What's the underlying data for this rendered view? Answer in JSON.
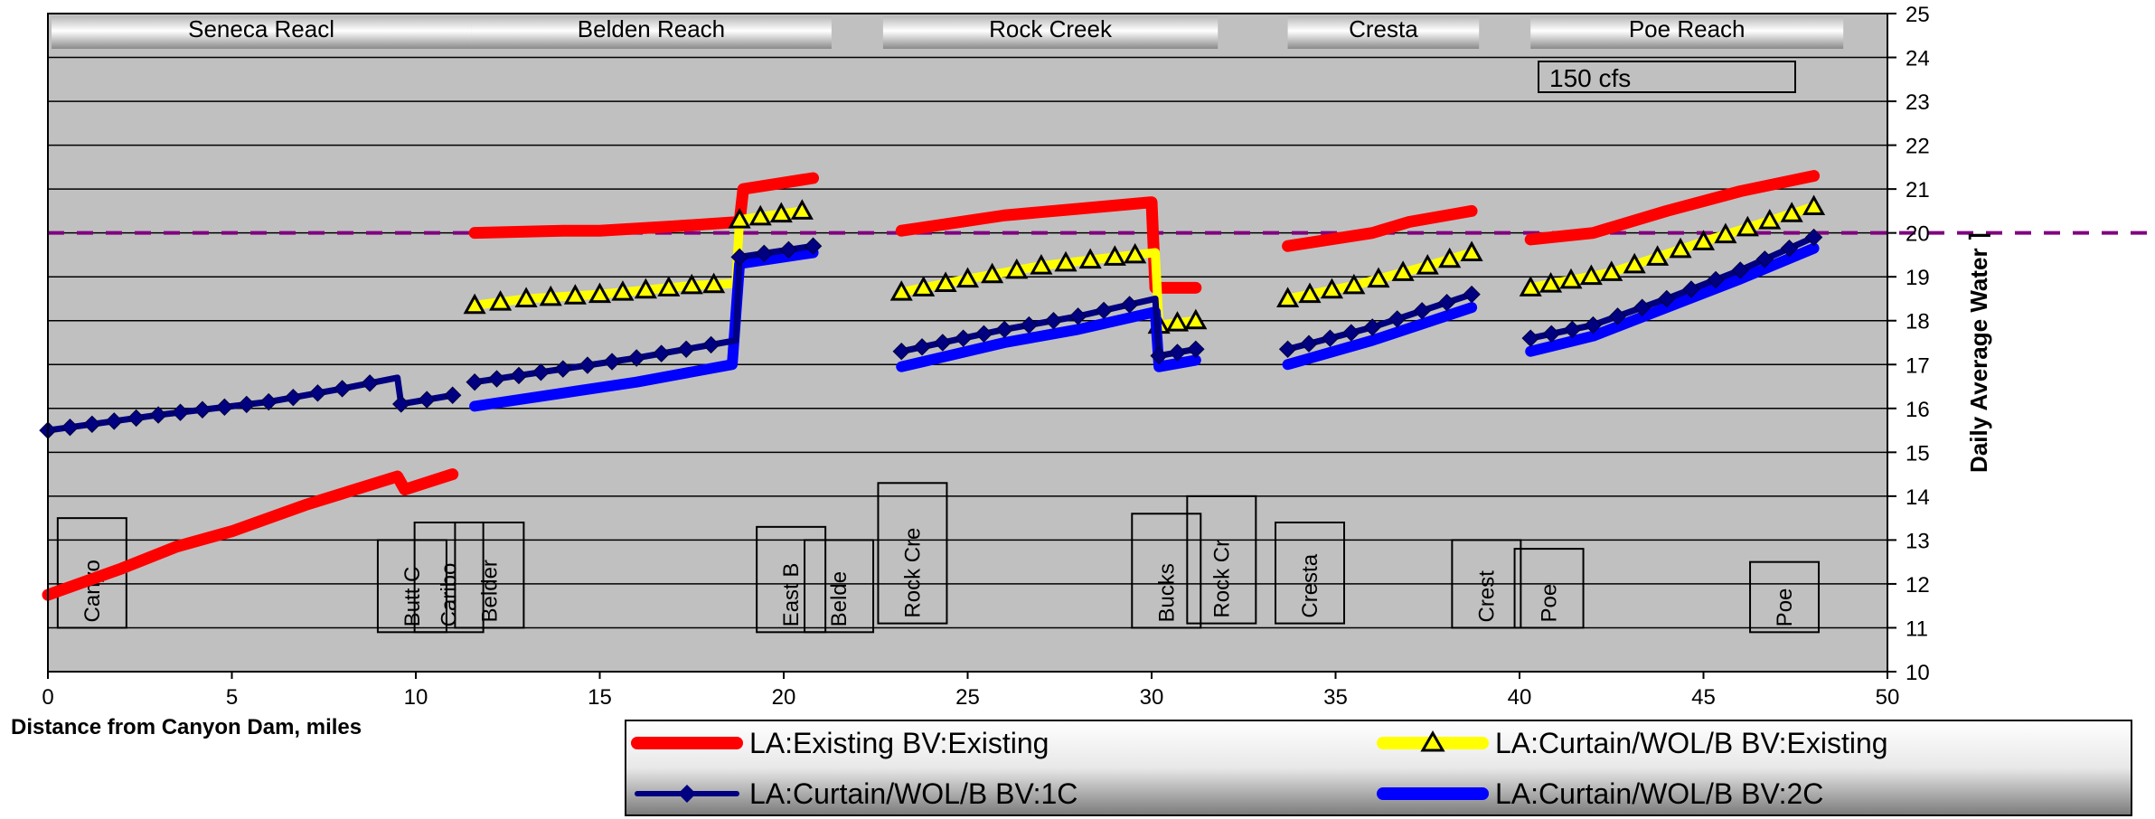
{
  "chart_data": {
    "type": "line",
    "title": "",
    "xlabel": "Distance from Canyon Dam, miles",
    "ylabel": "Daily Average Water ⌉",
    "xlim": [
      0,
      50
    ],
    "ylim": [
      10,
      25
    ],
    "x_ticks": [
      0,
      5,
      10,
      15,
      20,
      25,
      30,
      35,
      40,
      45,
      50
    ],
    "y_ticks": [
      10,
      11,
      12,
      13,
      14,
      15,
      16,
      17,
      18,
      19,
      20,
      21,
      22,
      23,
      24,
      25
    ],
    "grid": true,
    "flow_label": "150 cfs",
    "reference_line": {
      "y": 20,
      "color": "#800080",
      "style": "dashed"
    },
    "reach_labels": [
      {
        "text": "Seneca Reacl",
        "x0": 0.1,
        "x1": 11.5
      },
      {
        "text": "Belden Reach",
        "x0": 11.5,
        "x1": 21.3
      },
      {
        "text": "Rock Creek",
        "x0": 22.7,
        "x1": 31.8
      },
      {
        "text": "Cresta",
        "x0": 33.7,
        "x1": 38.9
      },
      {
        "text": "Poe Reach",
        "x0": 40.3,
        "x1": 48.8
      }
    ],
    "location_labels": [
      {
        "text": "Canyo",
        "x": 1.2,
        "y0": 11.0,
        "y1": 13.5
      },
      {
        "text": "Butt C",
        "x": 9.9,
        "y0": 10.9,
        "y1": 13.0
      },
      {
        "text": "Caribo",
        "x": 10.9,
        "y0": 10.9,
        "y1": 13.4
      },
      {
        "text": "Belder",
        "x": 12.0,
        "y0": 11.0,
        "y1": 13.4
      },
      {
        "text": "East B",
        "x": 20.2,
        "y0": 10.9,
        "y1": 13.3
      },
      {
        "text": "Belde",
        "x": 21.5,
        "y0": 10.9,
        "y1": 13.0
      },
      {
        "text": "Rock Cre",
        "x": 23.5,
        "y0": 11.1,
        "y1": 14.3
      },
      {
        "text": "Bucks",
        "x": 30.4,
        "y0": 11.0,
        "y1": 13.6
      },
      {
        "text": "Rock Cr",
        "x": 31.9,
        "y0": 11.1,
        "y1": 14.0
      },
      {
        "text": "Cresta",
        "x": 34.3,
        "y0": 11.1,
        "y1": 13.4
      },
      {
        "text": "Crest",
        "x": 39.1,
        "y0": 11.0,
        "y1": 13.0
      },
      {
        "text": "Poe",
        "x": 40.8,
        "y0": 11.0,
        "y1": 12.8
      },
      {
        "text": "Poe",
        "x": 47.2,
        "y0": 10.9,
        "y1": 12.5
      }
    ],
    "series": [
      {
        "name": "LA:Existing BV:Existing",
        "color": "#ff0000",
        "marker": "none",
        "segments": [
          [
            [
              0,
              11.75
            ],
            [
              2,
              12.35
            ],
            [
              3.5,
              12.85
            ],
            [
              5,
              13.2
            ],
            [
              7,
              13.8
            ],
            [
              9.5,
              14.45
            ],
            [
              9.7,
              14.15
            ],
            [
              11,
              14.5
            ]
          ],
          [
            [
              11.6,
              20.0
            ],
            [
              14,
              20.05
            ],
            [
              15,
              20.05
            ],
            [
              17,
              20.15
            ],
            [
              18.8,
              20.25
            ],
            [
              18.9,
              21.0
            ],
            [
              20.8,
              21.25
            ]
          ],
          [
            [
              23.2,
              20.05
            ],
            [
              26,
              20.4
            ],
            [
              28,
              20.55
            ],
            [
              30,
              20.7
            ],
            [
              30.1,
              18.75
            ],
            [
              31.2,
              18.75
            ]
          ],
          [
            [
              33.7,
              19.7
            ],
            [
              36,
              20.0
            ],
            [
              37,
              20.25
            ],
            [
              38.7,
              20.5
            ]
          ],
          [
            [
              40.3,
              19.85
            ],
            [
              42,
              20.0
            ],
            [
              44,
              20.5
            ],
            [
              46,
              20.95
            ],
            [
              48,
              21.3
            ]
          ]
        ]
      },
      {
        "name": "LA:Curtain/WOL/B BV:Existing",
        "color": "#ffff00",
        "marker": "triangle",
        "segments": [
          [
            [
              11.6,
              18.35
            ],
            [
              13,
              18.5
            ],
            [
              15,
              18.6
            ],
            [
              17.5,
              18.8
            ],
            [
              18.7,
              18.85
            ],
            [
              18.8,
              20.3
            ],
            [
              20.5,
              20.5
            ]
          ],
          [
            [
              23.2,
              18.65
            ],
            [
              25,
              18.95
            ],
            [
              27,
              19.25
            ],
            [
              29,
              19.45
            ],
            [
              30.1,
              19.55
            ],
            [
              30.2,
              17.9
            ],
            [
              31.2,
              18.0
            ]
          ],
          [
            [
              33.7,
              18.5
            ],
            [
              35.5,
              18.8
            ],
            [
              37.5,
              19.25
            ],
            [
              38.7,
              19.55
            ]
          ],
          [
            [
              40.3,
              18.75
            ],
            [
              42.5,
              19.1
            ],
            [
              45,
              19.8
            ],
            [
              48,
              20.6
            ]
          ]
        ]
      },
      {
        "name": "LA:Curtain/WOL/B BV:1C",
        "color": "#000080",
        "marker": "diamond",
        "segments": [
          [
            [
              0,
              15.5
            ],
            [
              3,
              15.85
            ],
            [
              6,
              16.15
            ],
            [
              8,
              16.45
            ],
            [
              9.5,
              16.7
            ],
            [
              9.6,
              16.1
            ],
            [
              11,
              16.3
            ]
          ],
          [
            [
              11.6,
              16.6
            ],
            [
              14,
              16.9
            ],
            [
              16,
              17.15
            ],
            [
              18.7,
              17.55
            ],
            [
              18.8,
              19.45
            ],
            [
              20.8,
              19.7
            ]
          ],
          [
            [
              23.2,
              17.3
            ],
            [
              26,
              17.8
            ],
            [
              28,
              18.1
            ],
            [
              30.1,
              18.5
            ],
            [
              30.2,
              17.2
            ],
            [
              31.2,
              17.35
            ]
          ],
          [
            [
              33.7,
              17.35
            ],
            [
              36,
              17.85
            ],
            [
              38.7,
              18.6
            ]
          ],
          [
            [
              40.3,
              17.6
            ],
            [
              42,
              17.9
            ],
            [
              44,
              18.5
            ],
            [
              46,
              19.15
            ],
            [
              48,
              19.9
            ]
          ]
        ]
      },
      {
        "name": "LA:Curtain/WOL/B BV:2C",
        "color": "#0000ff",
        "marker": "none",
        "segments": [
          [
            [
              11.6,
              16.05
            ],
            [
              14,
              16.35
            ],
            [
              16,
              16.6
            ],
            [
              18.6,
              17.0
            ],
            [
              18.8,
              19.3
            ],
            [
              20.8,
              19.55
            ]
          ],
          [
            [
              23.2,
              16.95
            ],
            [
              26,
              17.5
            ],
            [
              28,
              17.8
            ],
            [
              30.1,
              18.2
            ],
            [
              30.2,
              16.95
            ],
            [
              31.2,
              17.1
            ]
          ],
          [
            [
              33.7,
              17.0
            ],
            [
              36,
              17.55
            ],
            [
              38.7,
              18.3
            ]
          ],
          [
            [
              40.3,
              17.3
            ],
            [
              42,
              17.65
            ],
            [
              44,
              18.3
            ],
            [
              46,
              18.95
            ],
            [
              48,
              19.65
            ]
          ]
        ]
      }
    ],
    "legend": {
      "placement": "bottom",
      "entries": [
        "LA:Existing BV:Existing",
        "LA:Curtain/WOL/B BV:Existing",
        "LA:Curtain/WOL/B BV:1C",
        "LA:Curtain/WOL/B BV:2C"
      ]
    },
    "colors": {
      "plot_bg": "#c0c0c0",
      "grid": "#000000",
      "ref_line": "#800080"
    }
  }
}
